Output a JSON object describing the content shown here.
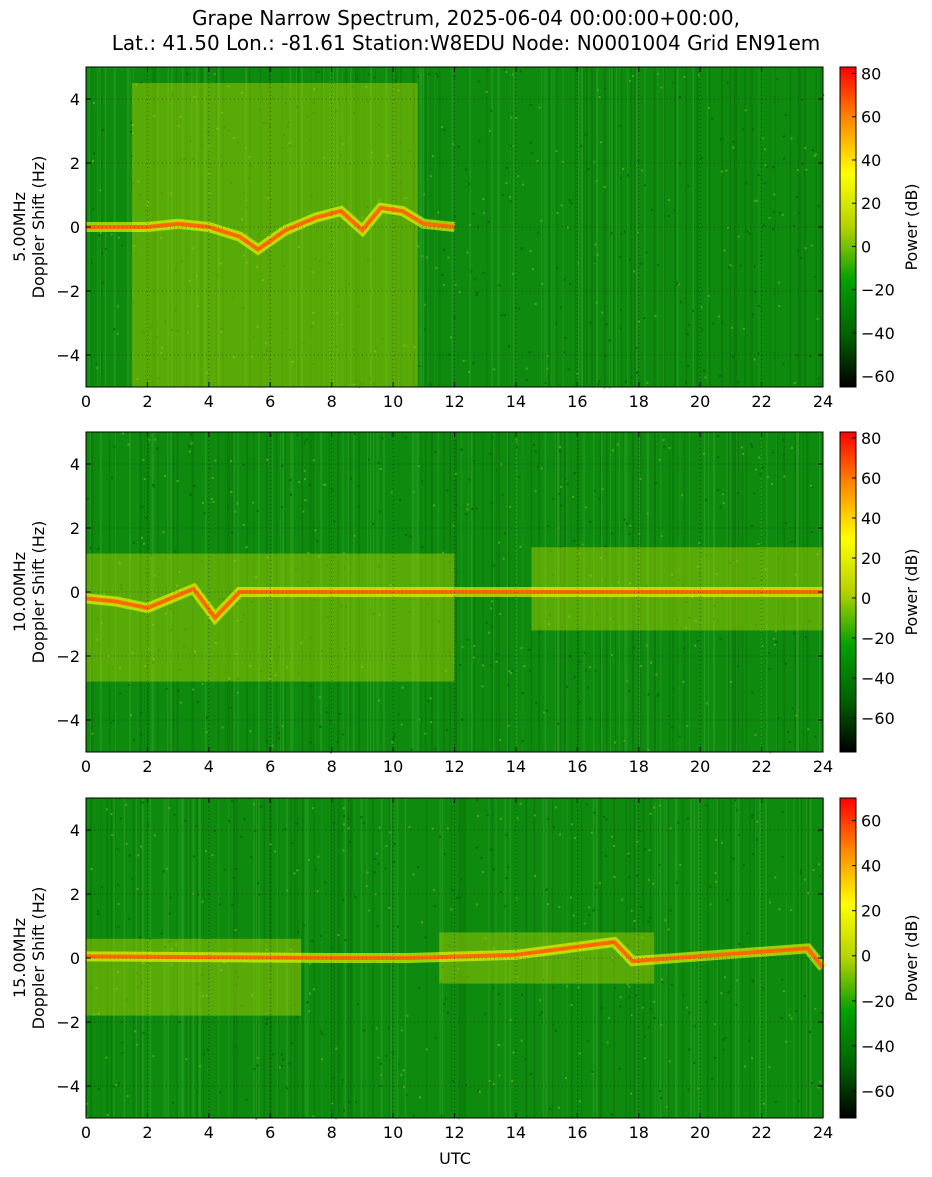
{
  "title": {
    "line1": "Grape Narrow Spectrum, 2025-06-04 00:00:00+00:00,",
    "line2": "Lat.: 41.50 Lon.: -81.61 Station:W8EDU Node: N0001004 Grid EN91em"
  },
  "colors": {
    "colormap": [
      "#000000",
      "#006400",
      "#00a000",
      "#b4d200",
      "#ffff00",
      "#ff8c00",
      "#ff0000"
    ],
    "axis": "#000000",
    "background": "#ffffff"
  },
  "chart_data": [
    {
      "type": "heatmap",
      "frequency_label": "5.00MHz",
      "ylabel": "Doppler Shift (Hz)",
      "xlabel": "",
      "colorbar_label": "Power (dB)",
      "xlim": [
        0,
        24
      ],
      "ylim": [
        -5,
        5
      ],
      "xticks": [
        0,
        2,
        4,
        6,
        8,
        10,
        12,
        14,
        16,
        18,
        20,
        22,
        24
      ],
      "yticks": [
        -4,
        -2,
        0,
        2,
        4
      ],
      "clim": [
        -65,
        83
      ],
      "cbar_ticks": [
        -60,
        -40,
        -20,
        0,
        20,
        40,
        60,
        80
      ],
      "grid": true,
      "carrier_trace": [
        {
          "t": 0,
          "f": 0
        },
        {
          "t": 2,
          "f": 0.0
        },
        {
          "t": 3,
          "f": 0.1
        },
        {
          "t": 4,
          "f": 0.0
        },
        {
          "t": 5,
          "f": -0.3
        },
        {
          "t": 5.6,
          "f": -0.7
        },
        {
          "t": 6.5,
          "f": -0.1
        },
        {
          "t": 7.5,
          "f": 0.3
        },
        {
          "t": 8.3,
          "f": 0.5
        },
        {
          "t": 9,
          "f": -0.1
        },
        {
          "t": 9.6,
          "f": 0.6
        },
        {
          "t": 10.3,
          "f": 0.5
        },
        {
          "t": 11,
          "f": 0.1
        },
        {
          "t": 12,
          "f": 0
        }
      ]
    },
    {
      "type": "heatmap",
      "frequency_label": "10.00MHz",
      "ylabel": "Doppler Shift (Hz)",
      "xlabel": "",
      "colorbar_label": "Power (dB)",
      "xlim": [
        0,
        24
      ],
      "ylim": [
        -5,
        5
      ],
      "xticks": [
        0,
        2,
        4,
        6,
        8,
        10,
        12,
        14,
        16,
        18,
        20,
        22,
        24
      ],
      "yticks": [
        -4,
        -2,
        0,
        2,
        4
      ],
      "clim": [
        -77,
        83
      ],
      "cbar_ticks": [
        -60,
        -40,
        -20,
        0,
        20,
        40,
        60,
        80
      ],
      "grid": true,
      "carrier_trace": [
        {
          "t": 0,
          "f": -0.2
        },
        {
          "t": 1,
          "f": -0.3
        },
        {
          "t": 2,
          "f": -0.5
        },
        {
          "t": 3,
          "f": -0.1
        },
        {
          "t": 3.5,
          "f": 0.1
        },
        {
          "t": 4.2,
          "f": -0.8
        },
        {
          "t": 5,
          "f": 0
        },
        {
          "t": 24,
          "f": 0
        }
      ]
    },
    {
      "type": "heatmap",
      "frequency_label": "15.00MHz",
      "ylabel": "Doppler Shift (Hz)",
      "xlabel": "UTC",
      "colorbar_label": "Power (dB)",
      "xlim": [
        0,
        24
      ],
      "ylim": [
        -5,
        5
      ],
      "xticks": [
        0,
        2,
        4,
        6,
        8,
        10,
        12,
        14,
        16,
        18,
        20,
        22,
        24
      ],
      "yticks": [
        -4,
        -2,
        0,
        2,
        4
      ],
      "clim": [
        -72,
        70
      ],
      "cbar_ticks": [
        -60,
        -40,
        -20,
        0,
        20,
        40,
        60
      ],
      "grid": true,
      "carrier_trace": [
        {
          "t": 0,
          "f": 0.05
        },
        {
          "t": 8,
          "f": 0
        },
        {
          "t": 10.5,
          "f": 0
        },
        {
          "t": 14,
          "f": 0.1
        },
        {
          "t": 17.2,
          "f": 0.5
        },
        {
          "t": 17.8,
          "f": -0.1
        },
        {
          "t": 23.5,
          "f": 0.3
        },
        {
          "t": 24,
          "f": -0.3
        }
      ]
    }
  ]
}
